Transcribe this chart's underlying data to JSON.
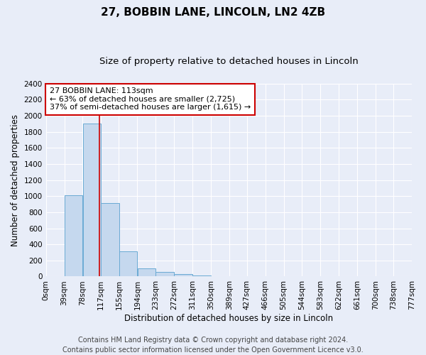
{
  "title": "27, BOBBIN LANE, LINCOLN, LN2 4ZB",
  "subtitle": "Size of property relative to detached houses in Lincoln",
  "xlabel": "Distribution of detached houses by size in Lincoln",
  "ylabel": "Number of detached properties",
  "bin_edges": [
    0,
    39,
    78,
    117,
    155,
    194,
    233,
    272,
    311,
    350,
    389,
    427,
    466,
    505,
    544,
    583,
    622,
    661,
    700,
    738,
    777
  ],
  "bar_heights": [
    5,
    1010,
    1900,
    910,
    310,
    105,
    55,
    30,
    10,
    5,
    2,
    2,
    1,
    1,
    1,
    0,
    0,
    0,
    0,
    0
  ],
  "bar_color": "#c5d8ee",
  "bar_edge_color": "#6aaad4",
  "property_size": 113,
  "vline_color": "#cc0000",
  "annotation_text": "27 BOBBIN LANE: 113sqm\n← 63% of detached houses are smaller (2,725)\n37% of semi-detached houses are larger (1,615) →",
  "annotation_box_color": "#cc0000",
  "ylim": [
    0,
    2400
  ],
  "yticks": [
    0,
    200,
    400,
    600,
    800,
    1000,
    1200,
    1400,
    1600,
    1800,
    2000,
    2200,
    2400
  ],
  "xtick_labels": [
    "0sqm",
    "39sqm",
    "78sqm",
    "117sqm",
    "155sqm",
    "194sqm",
    "233sqm",
    "272sqm",
    "311sqm",
    "350sqm",
    "389sqm",
    "427sqm",
    "466sqm",
    "505sqm",
    "544sqm",
    "583sqm",
    "622sqm",
    "661sqm",
    "700sqm",
    "738sqm",
    "777sqm"
  ],
  "footer_line1": "Contains HM Land Registry data © Crown copyright and database right 2024.",
  "footer_line2": "Contains public sector information licensed under the Open Government Licence v3.0.",
  "bg_color": "#e8edf8",
  "plot_bg_color": "#e8edf8",
  "grid_color": "#ffffff",
  "title_fontsize": 11,
  "subtitle_fontsize": 9.5,
  "axis_label_fontsize": 8.5,
  "tick_fontsize": 7.5,
  "footer_fontsize": 7,
  "annotation_fontsize": 8
}
